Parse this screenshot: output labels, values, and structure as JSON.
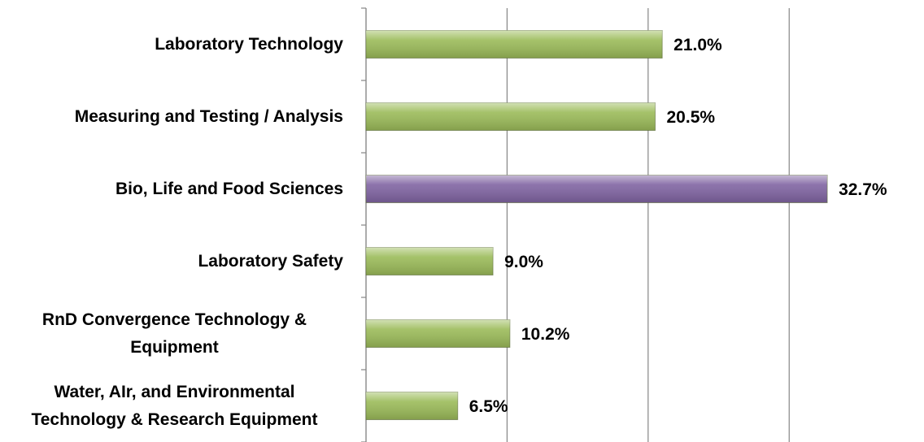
{
  "chart_data": {
    "type": "bar",
    "orientation": "horizontal",
    "categories": [
      "Laboratory Technology",
      "Measuring and Testing / Analysis",
      "Bio, Life and Food Sciences",
      "Laboratory Safety",
      "RnD Convergence Technology & Equipment",
      "Water, AIr, and Environmental Technology & Research Equipment"
    ],
    "values": [
      21.0,
      20.5,
      32.7,
      9.0,
      10.2,
      6.5
    ],
    "value_labels": [
      "21.0%",
      "20.5%",
      "32.7%",
      "9.0%",
      "10.2%",
      "6.5%"
    ],
    "colors": [
      "#9bbb59",
      "#9bbb59",
      "#8064a2",
      "#9bbb59",
      "#9bbb59",
      "#9bbb59"
    ],
    "xlim": [
      0,
      39.5
    ],
    "xticks": [
      0,
      10,
      20,
      30
    ],
    "grid": true
  }
}
